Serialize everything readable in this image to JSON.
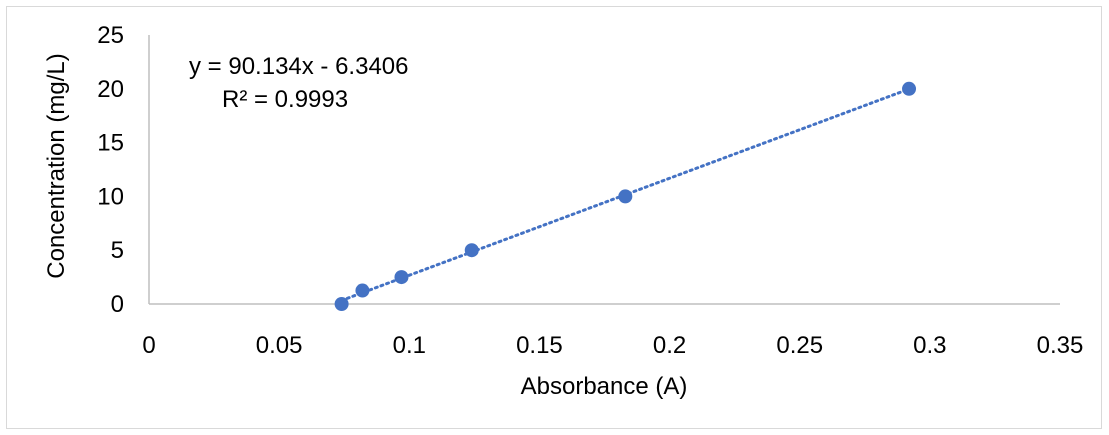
{
  "chart_data": {
    "type": "scatter",
    "title": "",
    "xlabel": "Absorbance (A)",
    "ylabel": "Concentration (mg/L)",
    "xlim": [
      0,
      0.35
    ],
    "ylim": [
      0,
      25
    ],
    "x_ticks": [
      "0",
      "0.05",
      "0.1",
      "0.15",
      "0.2",
      "0.25",
      "0.3",
      "0.35"
    ],
    "y_ticks": [
      "0",
      "5",
      "10",
      "15",
      "20",
      "25"
    ],
    "grid": false,
    "legend": "none",
    "series": [
      {
        "x": [
          0.074,
          0.082,
          0.097,
          0.124,
          0.183,
          0.292
        ],
        "y": [
          0,
          1.25,
          2.5,
          5,
          10,
          20
        ]
      }
    ],
    "trendline": {
      "type": "linear",
      "slope": 90.134,
      "intercept": -6.3406,
      "equation": "y = 90.134x - 6.3406",
      "r_squared": "R² = 0.9993"
    },
    "colors": {
      "marker": "#4472c4",
      "trendline": "#4472c4",
      "axis": "#bfbfbf"
    }
  }
}
